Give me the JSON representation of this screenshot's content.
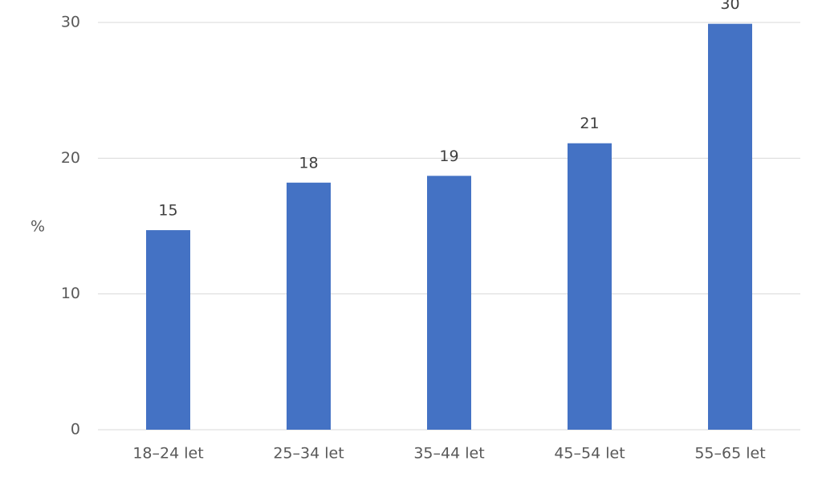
{
  "chart_data": {
    "type": "bar",
    "y_label": "%",
    "categories": [
      "18–24 let",
      "25–34 let",
      "35–44 let",
      "45–54 let",
      "55–65 let"
    ],
    "values": [
      14.7,
      18.2,
      18.7,
      21.1,
      29.9
    ],
    "value_labels": [
      "15",
      "18",
      "19",
      "21",
      "30"
    ],
    "color": "#4472c4",
    "ylim": [
      0,
      30
    ],
    "yticks": [
      0,
      10,
      20,
      30
    ],
    "grid": true
  }
}
